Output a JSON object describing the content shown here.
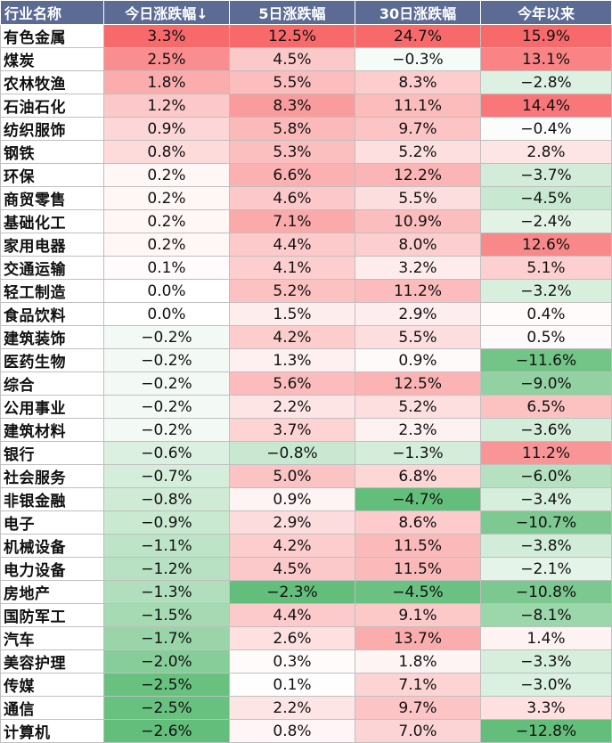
{
  "chart_data": {
    "type": "table",
    "columns": [
      "行业名称",
      "今日涨跌幅↓",
      "5日涨跌幅",
      "30日涨跌幅",
      "今年以来"
    ],
    "unit": "%",
    "rows": [
      {
        "name": "有色金属",
        "values": [
          3.3,
          12.5,
          24.7,
          15.9
        ]
      },
      {
        "name": "煤炭",
        "values": [
          2.5,
          4.5,
          -0.3,
          13.1
        ]
      },
      {
        "name": "农林牧渔",
        "values": [
          1.8,
          5.5,
          8.3,
          -2.8
        ]
      },
      {
        "name": "石油石化",
        "values": [
          1.2,
          8.3,
          11.1,
          14.4
        ]
      },
      {
        "name": "纺织服饰",
        "values": [
          0.9,
          5.8,
          9.7,
          -0.4
        ]
      },
      {
        "name": "钢铁",
        "values": [
          0.8,
          5.3,
          5.2,
          2.8
        ]
      },
      {
        "name": "环保",
        "values": [
          0.2,
          6.6,
          12.2,
          -3.7
        ]
      },
      {
        "name": "商贸零售",
        "values": [
          0.2,
          4.6,
          5.5,
          -4.5
        ]
      },
      {
        "name": "基础化工",
        "values": [
          0.2,
          7.1,
          10.9,
          -2.4
        ]
      },
      {
        "name": "家用电器",
        "values": [
          0.2,
          4.4,
          8.0,
          12.6
        ]
      },
      {
        "name": "交通运输",
        "values": [
          0.1,
          4.1,
          3.2,
          5.1
        ]
      },
      {
        "name": "轻工制造",
        "values": [
          0.0,
          5.2,
          11.2,
          -3.2
        ]
      },
      {
        "name": "食品饮料",
        "values": [
          0.0,
          1.5,
          2.9,
          0.4
        ]
      },
      {
        "name": "建筑装饰",
        "values": [
          -0.2,
          4.2,
          5.5,
          0.5
        ]
      },
      {
        "name": "医药生物",
        "values": [
          -0.2,
          1.3,
          0.9,
          -11.6
        ]
      },
      {
        "name": "综合",
        "values": [
          -0.2,
          5.6,
          12.5,
          -9.0
        ]
      },
      {
        "name": "公用事业",
        "values": [
          -0.2,
          2.2,
          5.2,
          6.5
        ]
      },
      {
        "name": "建筑材料",
        "values": [
          -0.2,
          3.7,
          2.3,
          -3.6
        ]
      },
      {
        "name": "银行",
        "values": [
          -0.6,
          -0.8,
          -1.3,
          11.2
        ]
      },
      {
        "name": "社会服务",
        "values": [
          -0.7,
          5.0,
          6.8,
          -6.0
        ]
      },
      {
        "name": "非银金融",
        "values": [
          -0.8,
          0.9,
          -4.7,
          -3.4
        ]
      },
      {
        "name": "电子",
        "values": [
          -0.9,
          2.9,
          8.6,
          -10.7
        ]
      },
      {
        "name": "机械设备",
        "values": [
          -1.1,
          4.2,
          11.5,
          -3.8
        ]
      },
      {
        "name": "电力设备",
        "values": [
          -1.2,
          4.5,
          11.5,
          -2.1
        ]
      },
      {
        "name": "房地产",
        "values": [
          -1.3,
          -2.3,
          -4.5,
          -10.8
        ]
      },
      {
        "name": "国防军工",
        "values": [
          -1.5,
          4.4,
          9.1,
          -8.1
        ]
      },
      {
        "name": "汽车",
        "values": [
          -1.7,
          2.6,
          13.7,
          1.4
        ]
      },
      {
        "name": "美容护理",
        "values": [
          -2.0,
          0.3,
          1.8,
          -3.3
        ]
      },
      {
        "name": "传媒",
        "values": [
          -2.5,
          0.1,
          7.1,
          -3.0
        ]
      },
      {
        "name": "通信",
        "values": [
          -2.5,
          2.2,
          9.7,
          3.3
        ]
      },
      {
        "name": "计算机",
        "values": [
          -2.6,
          0.8,
          7.0,
          -12.8
        ]
      }
    ],
    "color_scale": {
      "positive_max": "#f8696b",
      "neutral": "#ffffff",
      "negative_max": "#63be7b"
    }
  }
}
